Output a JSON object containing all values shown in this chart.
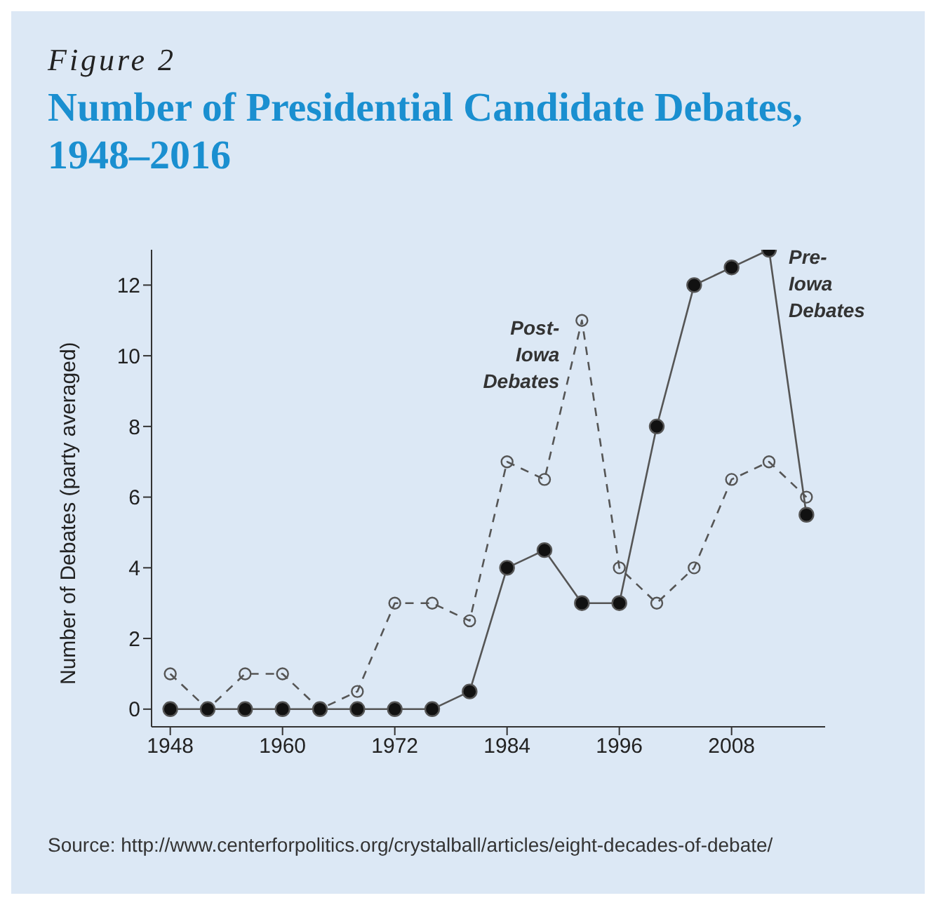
{
  "chart_data": {
    "type": "line",
    "subtitle": "Figure 2",
    "title": "Number of Presidential Candidate Debates, 1948–2016",
    "ylabel": "Number of Debates (party averaged)",
    "x": [
      1948,
      1952,
      1956,
      1960,
      1964,
      1968,
      1972,
      1976,
      1980,
      1984,
      1988,
      1992,
      1996,
      2000,
      2004,
      2008,
      2012,
      2016
    ],
    "series": [
      {
        "name": "Post-Iowa Debates",
        "color": "#555555",
        "line_style": "dashed",
        "marker": "circle",
        "values": [
          1,
          0,
          1,
          1,
          0,
          0.5,
          3,
          3,
          2.5,
          7,
          6.5,
          11,
          4,
          3,
          4,
          6.5,
          7,
          6
        ]
      },
      {
        "name": "Pre-Iowa Debates",
        "color": "#555555",
        "line_style": "solid",
        "marker": "circle",
        "values": [
          0,
          0,
          0,
          0,
          0,
          0,
          0,
          0,
          0.5,
          4,
          4.5,
          3,
          3,
          8,
          12,
          12.5,
          13,
          5.5
        ]
      }
    ],
    "xlim": [
      1946,
      2018
    ],
    "xticks": [
      1948,
      1960,
      1972,
      1984,
      1996,
      2008
    ],
    "ylim": [
      -0.5,
      13
    ],
    "yticks": [
      0,
      2,
      4,
      6,
      8,
      10,
      12
    ],
    "annotations": [
      "Source: http://www.centerforpolitics.org/crystalball/articles/eight-decades-of-debate/"
    ]
  }
}
